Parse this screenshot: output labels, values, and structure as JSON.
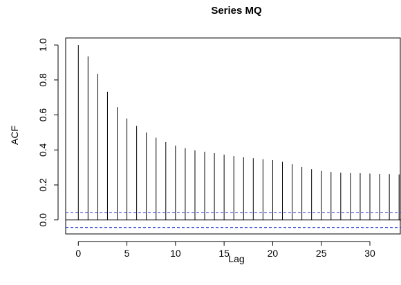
{
  "chart_data": {
    "type": "bar",
    "title": "Series  MQ",
    "xlabel": "Lag",
    "ylabel": "ACF",
    "x": [
      0,
      1,
      2,
      3,
      4,
      5,
      6,
      7,
      8,
      9,
      10,
      11,
      12,
      13,
      14,
      15,
      16,
      17,
      18,
      19,
      20,
      21,
      22,
      23,
      24,
      25,
      26,
      27,
      28,
      29,
      30,
      31,
      32,
      33
    ],
    "values": [
      1.0,
      0.935,
      0.835,
      0.733,
      0.645,
      0.58,
      0.537,
      0.5,
      0.47,
      0.445,
      0.425,
      0.41,
      0.398,
      0.39,
      0.382,
      0.373,
      0.365,
      0.358,
      0.353,
      0.347,
      0.342,
      0.332,
      0.318,
      0.303,
      0.29,
      0.28,
      0.274,
      0.27,
      0.268,
      0.267,
      0.265,
      0.263,
      0.262,
      0.26
    ],
    "confidence_band": [
      0.043,
      -0.043
    ],
    "xlim": [
      -1.3,
      33.2
    ],
    "ylim": [
      -0.08,
      1.04
    ],
    "xticks": [
      0,
      5,
      10,
      15,
      20,
      25,
      30
    ],
    "yticks": [
      0.0,
      0.2,
      0.4,
      0.6,
      0.8,
      1.0
    ],
    "ytick_labels": [
      "0.0",
      "0.2",
      "0.4",
      "0.6",
      "0.8",
      "1.0"
    ],
    "grid": false,
    "colors": {
      "spike": "#000000",
      "zero_line": "#000000",
      "confidence": "#3b4fd6",
      "frame": "#000000"
    }
  }
}
